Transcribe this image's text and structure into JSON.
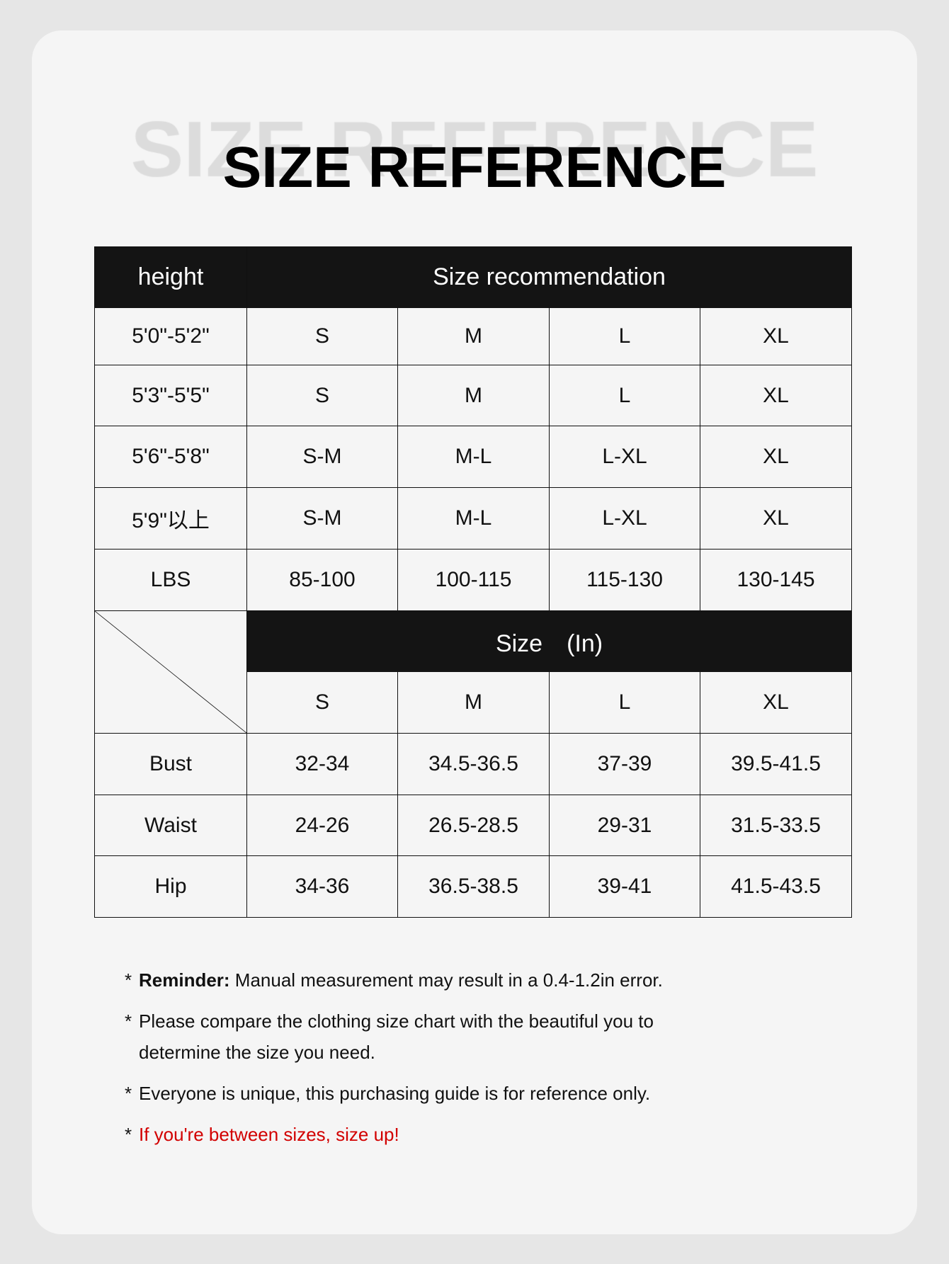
{
  "title": "SIZE REFERENCE",
  "watermark": "SIZE REFERENCE",
  "table": {
    "header_left": "height",
    "header_right": "Size recommendation",
    "height_rows": [
      {
        "label": "5'0\"-5'2\"",
        "cells": [
          "S",
          "M",
          "L",
          "XL"
        ]
      },
      {
        "label": "5'3\"-5'5\"",
        "cells": [
          "S",
          "M",
          "L",
          "XL"
        ]
      },
      {
        "label": "5'6\"-5'8\"",
        "cells": [
          "S-M",
          "M-L",
          "L-XL",
          "XL"
        ]
      },
      {
        "label": "5'9\"以上",
        "cells": [
          "S-M",
          "M-L",
          "L-XL",
          "XL"
        ]
      },
      {
        "label": "LBS",
        "cells": [
          "85-100",
          "100-115",
          "115-130",
          "130-145"
        ]
      }
    ],
    "size_header": "Size　(In)",
    "sizes": [
      "S",
      "M",
      "L",
      "XL"
    ],
    "measure_rows": [
      {
        "label": "Bust",
        "cells": [
          "32-34",
          "34.5-36.5",
          "37-39",
          "39.5-41.5"
        ]
      },
      {
        "label": "Waist",
        "cells": [
          "24-26",
          "26.5-28.5",
          "29-31",
          "31.5-33.5"
        ]
      },
      {
        "label": "Hip",
        "cells": [
          "34-36",
          "36.5-38.5",
          "39-41",
          "41.5-43.5"
        ]
      }
    ]
  },
  "notes": {
    "bullet": "*",
    "reminder_label": "Reminder:",
    "reminder_text": " Manual measurement may result in a 0.4-1.2in error.",
    "line2a": "Please compare the clothing size chart with the beautiful you to",
    "line2b": "determine the size you need.",
    "line3": "Everyone is unique, this purchasing guide is for reference only.",
    "line4": "If you're between sizes, size up!",
    "highlight_color": "#d20000"
  }
}
